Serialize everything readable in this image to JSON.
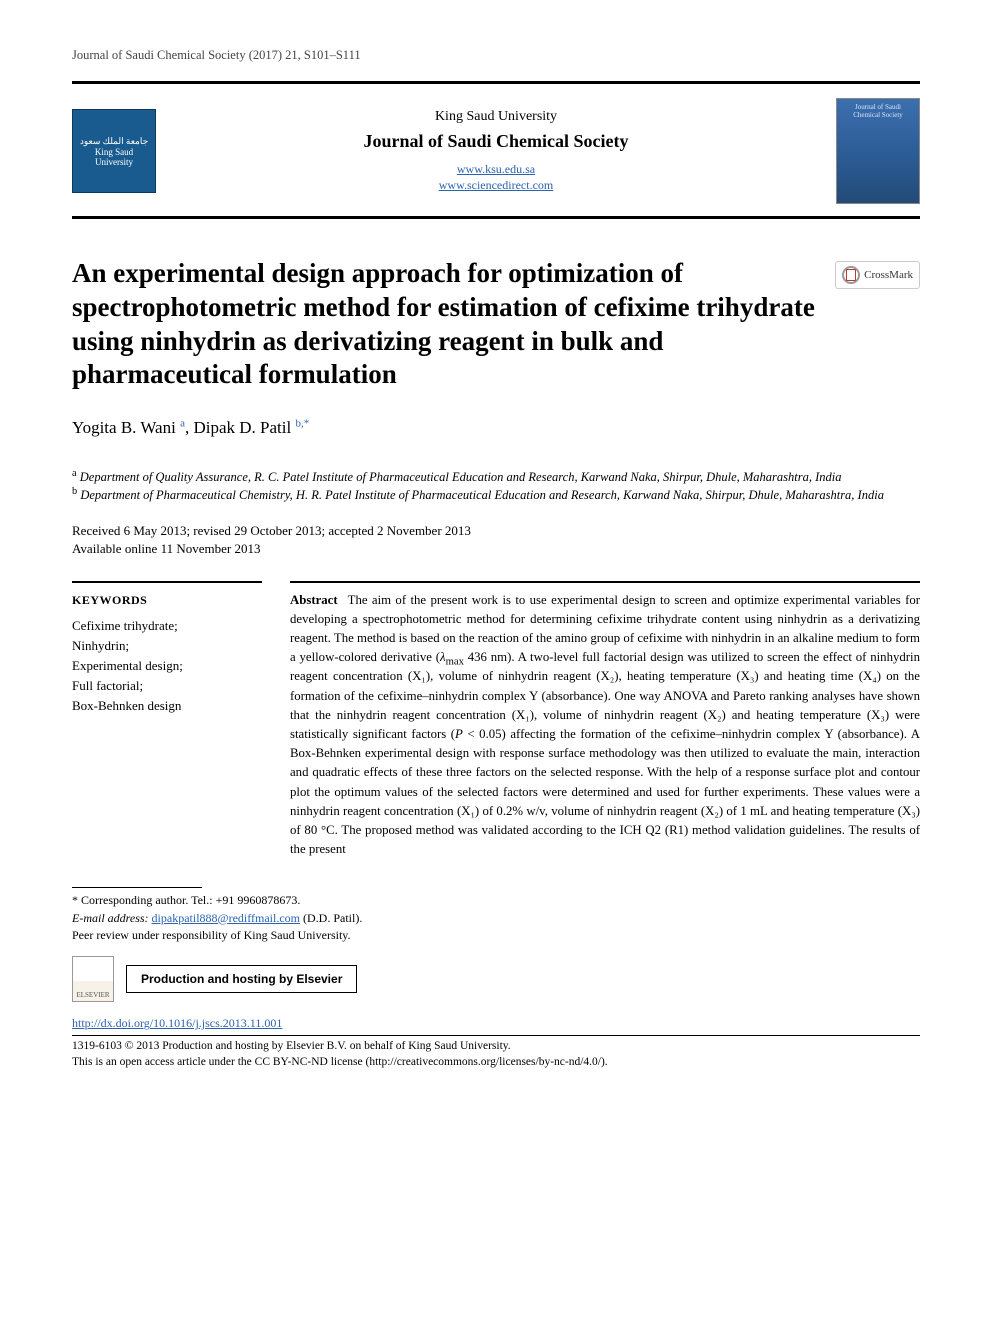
{
  "running_head": "Journal of Saudi Chemical Society (2017) 21, S101–S111",
  "masthead": {
    "university": "King Saud University",
    "journal_name": "Journal of Saudi Chemical Society",
    "link1": "www.ksu.edu.sa",
    "link2": "www.sciencedirect.com",
    "left_logo_text": "جامعة الملك سعود\nKing Saud University",
    "cover_text": "Journal of Saudi Chemical Society"
  },
  "crossmark_label": "CrossMark",
  "title": "An experimental design approach for optimization of spectrophotometric method for estimation of cefixime trihydrate using ninhydrin as derivatizing reagent in bulk and pharmaceutical formulation",
  "authors": {
    "a1_name": "Yogita B. Wani ",
    "a1_aff": "a",
    "sep": ", ",
    "a2_name": "Dipak D. Patil ",
    "a2_aff": "b,",
    "a2_corr": "*"
  },
  "affiliations": {
    "a": "Department of Quality Assurance, R. C. Patel Institute of Pharmaceutical Education and Research, Karwand Naka, Shirpur, Dhule, Maharashtra, India",
    "b": "Department of Pharmaceutical Chemistry, H. R. Patel Institute of Pharmaceutical Education and Research, Karwand Naka, Shirpur, Dhule, Maharashtra, India"
  },
  "dates": {
    "line1": "Received 6 May 2013; revised 29 October 2013; accepted 2 November 2013",
    "line2": "Available online 11 November 2013"
  },
  "keywords": {
    "heading": "KEYWORDS",
    "items": [
      "Cefixime trihydrate;",
      "Ninhydrin;",
      "Experimental design;",
      "Full factorial;",
      "Box-Behnken design"
    ]
  },
  "abstract": {
    "label": "Abstract",
    "pre": "The aim of the present work is to use experimental design to screen and optimize experimental variables for developing a spectrophotometric method for determining cefixime trihydrate content using ninhydrin as a derivatizing reagent. The method is based on the reaction of the amino group of cefixime with ninhydrin in an alkaline medium to form a yellow-colored derivative (",
    "lambda": "λ",
    "lambda_sub": "max",
    "post_lambda": " 436 nm). A two-level full factorial design was utilized to screen the effect of ninhydrin reagent concentration (X₁), volume of ninhydrin reagent (X₂), heating temperature (X₃) and heating time (X₄) on the formation of the cefixime–ninhydrin complex Y (absorbance). One way ANOVA and Pareto ranking analyses have shown that the ninhydrin reagent concentration (X₁), volume of ninhydrin reagent (X₂) and heating temperature (X₃) were statistically significant factors (",
    "p_ital": "P",
    "post_p": " < 0.05) affecting the formation of the cefixime–ninhydrin complex Y (absorbance). A Box-Behnken experimental design with response surface methodology was then utilized to evaluate the main, interaction and quadratic effects of these three factors on the selected response. With the help of a response surface plot and contour plot the optimum values of the selected factors were determined and used for further experiments. These values were a ninhydrin reagent concentration (X₁) of 0.2% w/v, volume of ninhydrin reagent (X₂) of 1 mL and heating temperature (X₃) of 80 °C. The proposed method was validated according to the ICH Q2 (R1) method validation guidelines. The results of the present"
  },
  "footnotes": {
    "corr": "* Corresponding author. Tel.: +91 9960878673.",
    "email_label": "E-mail address: ",
    "email": "dipakpatil888@rediffmail.com",
    "email_tail": " (D.D. Patil).",
    "peer": "Peer review under responsibility of King Saud University."
  },
  "hosting": {
    "elsevier": "ELSEVIER",
    "bar": "Production and hosting by Elsevier"
  },
  "doi": "http://dx.doi.org/10.1016/j.jscs.2013.11.001",
  "copyright": {
    "line1": "1319-6103 © 2013 Production and hosting by Elsevier B.V. on behalf of King Saud University.",
    "line2": "This is an open access article under the CC BY-NC-ND license (http://creativecommons.org/licenses/by-nc-nd/4.0/)."
  },
  "colors": {
    "link": "#2a63b0",
    "logo_bg": "#1a5b8f"
  }
}
